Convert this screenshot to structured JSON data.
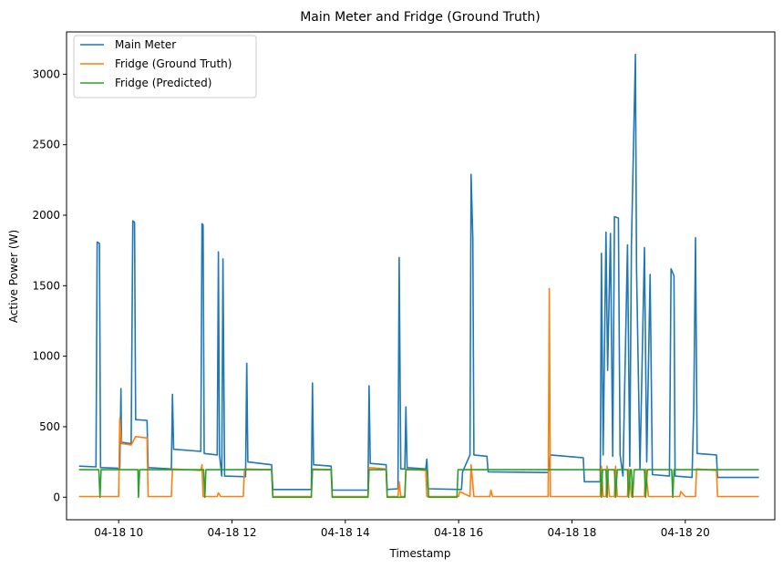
{
  "chart_data": {
    "type": "line",
    "title": "Main Meter and Fridge (Ground Truth)",
    "xlabel": "Timestamp",
    "ylabel": "Active Power (W)",
    "xlim": [
      9.08,
      21.58
    ],
    "ylim": [
      -160,
      3300
    ],
    "x_ticks": [
      {
        "value": 10,
        "label": "04-18 10"
      },
      {
        "value": 12,
        "label": "04-18 12"
      },
      {
        "value": 14,
        "label": "04-18 14"
      },
      {
        "value": 16,
        "label": "04-18 16"
      },
      {
        "value": 18,
        "label": "04-18 18"
      },
      {
        "value": 20,
        "label": "04-18 20"
      }
    ],
    "y_ticks": [
      {
        "value": 0,
        "label": "0"
      },
      {
        "value": 500,
        "label": "500"
      },
      {
        "value": 1000,
        "label": "1000"
      },
      {
        "value": 1500,
        "label": "1500"
      },
      {
        "value": 2000,
        "label": "2000"
      },
      {
        "value": 2500,
        "label": "2500"
      },
      {
        "value": 3000,
        "label": "3000"
      }
    ],
    "grid": false,
    "legend_position": "top-left",
    "series": [
      {
        "name": "Main Meter",
        "color": "#1f77b4",
        "points": [
          [
            9.3,
            220
          ],
          [
            9.6,
            215
          ],
          [
            9.62,
            1810
          ],
          [
            9.66,
            1800
          ],
          [
            9.68,
            210
          ],
          [
            10.02,
            205
          ],
          [
            10.04,
            770
          ],
          [
            10.05,
            390
          ],
          [
            10.22,
            380
          ],
          [
            10.25,
            1960
          ],
          [
            10.28,
            1950
          ],
          [
            10.3,
            550
          ],
          [
            10.5,
            545
          ],
          [
            10.52,
            210
          ],
          [
            10.93,
            200
          ],
          [
            10.95,
            730
          ],
          [
            10.97,
            340
          ],
          [
            11.45,
            325
          ],
          [
            11.47,
            1940
          ],
          [
            11.49,
            1930
          ],
          [
            11.51,
            310
          ],
          [
            11.74,
            300
          ],
          [
            11.76,
            1740
          ],
          [
            11.78,
            300
          ],
          [
            11.82,
            150
          ],
          [
            11.84,
            1690
          ],
          [
            11.87,
            150
          ],
          [
            12.24,
            145
          ],
          [
            12.26,
            950
          ],
          [
            12.28,
            250
          ],
          [
            12.7,
            230
          ],
          [
            12.72,
            55
          ],
          [
            13.4,
            55
          ],
          [
            13.42,
            810
          ],
          [
            13.44,
            230
          ],
          [
            13.75,
            220
          ],
          [
            13.77,
            50
          ],
          [
            14.4,
            50
          ],
          [
            14.42,
            790
          ],
          [
            14.44,
            240
          ],
          [
            14.72,
            230
          ],
          [
            14.74,
            55
          ],
          [
            14.93,
            60
          ],
          [
            14.95,
            1700
          ],
          [
            14.98,
            200
          ],
          [
            15.05,
            200
          ],
          [
            15.07,
            640
          ],
          [
            15.09,
            210
          ],
          [
            15.42,
            200
          ],
          [
            15.44,
            270
          ],
          [
            15.46,
            60
          ],
          [
            16.05,
            55
          ],
          [
            16.07,
            180
          ],
          [
            16.2,
            300
          ],
          [
            16.22,
            2290
          ],
          [
            16.25,
            1840
          ],
          [
            16.27,
            300
          ],
          [
            16.5,
            290
          ],
          [
            16.52,
            180
          ],
          [
            17.58,
            175
          ],
          [
            17.62,
            300
          ],
          [
            18.2,
            280
          ],
          [
            18.22,
            110
          ],
          [
            18.5,
            110
          ],
          [
            18.52,
            1730
          ],
          [
            18.55,
            300
          ],
          [
            18.6,
            1880
          ],
          [
            18.63,
            900
          ],
          [
            18.68,
            1870
          ],
          [
            18.72,
            290
          ],
          [
            18.75,
            1990
          ],
          [
            18.82,
            1980
          ],
          [
            18.85,
            300
          ],
          [
            18.9,
            150
          ],
          [
            18.98,
            1790
          ],
          [
            19.02,
            220
          ],
          [
            19.05,
            1780
          ],
          [
            19.12,
            3140
          ],
          [
            19.14,
            1630
          ],
          [
            19.2,
            200
          ],
          [
            19.28,
            1770
          ],
          [
            19.32,
            250
          ],
          [
            19.38,
            1580
          ],
          [
            19.42,
            160
          ],
          [
            19.72,
            150
          ],
          [
            19.75,
            1620
          ],
          [
            19.8,
            1570
          ],
          [
            19.82,
            150
          ],
          [
            20.12,
            140
          ],
          [
            20.15,
            630
          ],
          [
            20.18,
            1840
          ],
          [
            20.21,
            310
          ],
          [
            20.55,
            300
          ],
          [
            20.57,
            140
          ],
          [
            21.3,
            140
          ]
        ]
      },
      {
        "name": "Fridge (Ground Truth)",
        "color": "#ff7f0e",
        "points": [
          [
            9.3,
            5
          ],
          [
            10.0,
            5
          ],
          [
            10.02,
            560
          ],
          [
            10.05,
            380
          ],
          [
            10.22,
            370
          ],
          [
            10.3,
            430
          ],
          [
            10.5,
            420
          ],
          [
            10.52,
            5
          ],
          [
            10.93,
            5
          ],
          [
            10.95,
            200
          ],
          [
            11.45,
            190
          ],
          [
            11.47,
            230
          ],
          [
            11.49,
            5
          ],
          [
            11.74,
            5
          ],
          [
            11.76,
            30
          ],
          [
            11.8,
            5
          ],
          [
            12.2,
            5
          ],
          [
            12.22,
            200
          ],
          [
            12.7,
            195
          ],
          [
            12.72,
            5
          ],
          [
            13.4,
            5
          ],
          [
            13.42,
            200
          ],
          [
            13.75,
            195
          ],
          [
            13.77,
            5
          ],
          [
            14.4,
            5
          ],
          [
            14.42,
            210
          ],
          [
            14.72,
            200
          ],
          [
            14.74,
            5
          ],
          [
            14.93,
            5
          ],
          [
            14.95,
            110
          ],
          [
            14.98,
            5
          ],
          [
            15.05,
            5
          ],
          [
            15.07,
            200
          ],
          [
            15.42,
            190
          ],
          [
            15.44,
            5
          ],
          [
            16.0,
            5
          ],
          [
            16.02,
            40
          ],
          [
            16.2,
            5
          ],
          [
            16.22,
            230
          ],
          [
            16.27,
            5
          ],
          [
            16.55,
            5
          ],
          [
            16.57,
            50
          ],
          [
            16.6,
            5
          ],
          [
            17.58,
            5
          ],
          [
            17.6,
            1480
          ],
          [
            17.62,
            5
          ],
          [
            18.5,
            5
          ],
          [
            18.52,
            220
          ],
          [
            18.55,
            5
          ],
          [
            18.6,
            5
          ],
          [
            18.62,
            220
          ],
          [
            18.66,
            5
          ],
          [
            18.75,
            5
          ],
          [
            18.77,
            220
          ],
          [
            18.8,
            5
          ],
          [
            18.98,
            5
          ],
          [
            19.0,
            200
          ],
          [
            19.05,
            5
          ],
          [
            19.28,
            5
          ],
          [
            19.3,
            200
          ],
          [
            19.35,
            5
          ],
          [
            19.9,
            5
          ],
          [
            19.92,
            40
          ],
          [
            20.0,
            5
          ],
          [
            20.18,
            5
          ],
          [
            20.2,
            200
          ],
          [
            20.55,
            190
          ],
          [
            20.57,
            5
          ],
          [
            21.3,
            5
          ]
        ]
      },
      {
        "name": "Fridge (Predicted)",
        "color": "#2ca02c",
        "points": [
          [
            9.3,
            195
          ],
          [
            9.65,
            195
          ],
          [
            9.67,
            0
          ],
          [
            9.69,
            195
          ],
          [
            10.34,
            195
          ],
          [
            10.35,
            0
          ],
          [
            10.37,
            195
          ],
          [
            11.5,
            195
          ],
          [
            11.52,
            0
          ],
          [
            11.54,
            195
          ],
          [
            12.7,
            195
          ],
          [
            12.72,
            0
          ],
          [
            13.4,
            0
          ],
          [
            13.42,
            195
          ],
          [
            13.75,
            195
          ],
          [
            13.77,
            0
          ],
          [
            14.4,
            0
          ],
          [
            14.42,
            195
          ],
          [
            14.72,
            195
          ],
          [
            14.74,
            0
          ],
          [
            15.05,
            0
          ],
          [
            15.07,
            195
          ],
          [
            15.45,
            195
          ],
          [
            15.47,
            0
          ],
          [
            15.97,
            0
          ],
          [
            15.99,
            195
          ],
          [
            18.5,
            195
          ],
          [
            18.52,
            0
          ],
          [
            18.54,
            195
          ],
          [
            18.6,
            195
          ],
          [
            18.62,
            0
          ],
          [
            18.64,
            195
          ],
          [
            18.75,
            195
          ],
          [
            18.77,
            0
          ],
          [
            18.8,
            195
          ],
          [
            18.98,
            195
          ],
          [
            19.0,
            0
          ],
          [
            19.03,
            195
          ],
          [
            19.05,
            195
          ],
          [
            19.07,
            0
          ],
          [
            19.1,
            195
          ],
          [
            19.28,
            195
          ],
          [
            19.3,
            0
          ],
          [
            19.33,
            195
          ],
          [
            19.76,
            195
          ],
          [
            19.78,
            0
          ],
          [
            19.8,
            195
          ],
          [
            21.3,
            195
          ]
        ]
      }
    ]
  }
}
